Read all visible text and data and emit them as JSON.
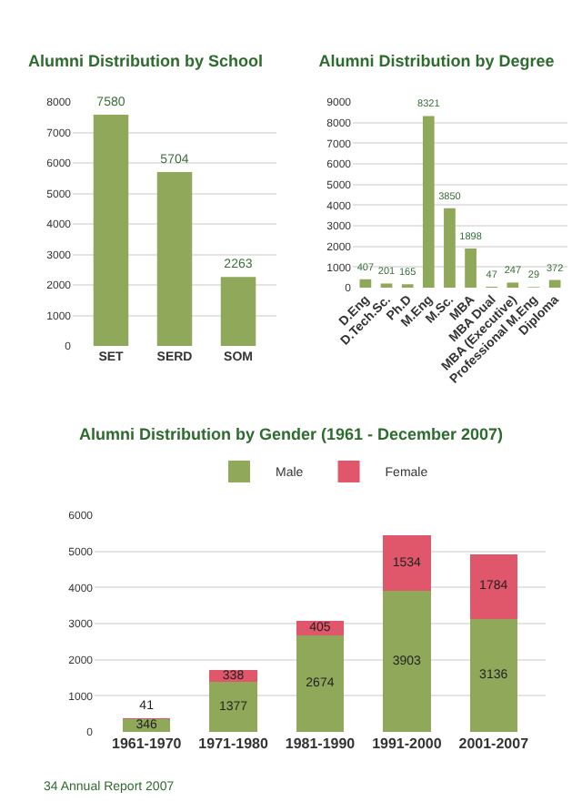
{
  "chart_data": [
    {
      "type": "bar",
      "title": "Alumni Distribution by School",
      "categories": [
        "SET",
        "SERD",
        "SOM"
      ],
      "values": [
        7580,
        5704,
        2263
      ],
      "color": "#8fa85a",
      "ylim": [
        0,
        8000
      ],
      "yticks": [
        0,
        1000,
        2000,
        3000,
        4000,
        5000,
        6000,
        7000,
        8000
      ],
      "grid": "y",
      "data_labels": true
    },
    {
      "type": "bar",
      "title": "Alumni Distribution by Degree",
      "categories": [
        "D.Eng",
        "D.Tech.Sc.",
        "Ph.D",
        "M.Eng",
        "M.Sc.",
        "MBA",
        "MBA Dual",
        "MBA (Executive)",
        "Professional M.Eng",
        "Diploma"
      ],
      "values": [
        407,
        201,
        165,
        8321,
        3850,
        1898,
        47,
        247,
        29,
        372
      ],
      "color": "#8fa85a",
      "ylim": [
        0,
        9000
      ],
      "yticks": [
        0,
        1000,
        2000,
        3000,
        4000,
        5000,
        6000,
        7000,
        8000,
        9000
      ],
      "grid": "y",
      "data_labels": true
    },
    {
      "type": "bar",
      "title": "Alumni Distribution by Gender (1961 - December 2007)",
      "categories": [
        "1961-1970",
        "1971-1980",
        "1981-1990",
        "1991-2000",
        "2001-2007"
      ],
      "stacked": true,
      "series": [
        {
          "name": "Male",
          "color": "#8fa85a",
          "values": [
            346,
            1377,
            2674,
            3903,
            3136
          ]
        },
        {
          "name": "Female",
          "color": "#e0566a",
          "values": [
            41,
            338,
            405,
            1534,
            1784
          ]
        }
      ],
      "ylim": [
        0,
        6000
      ],
      "yticks": [
        0,
        1000,
        2000,
        3000,
        4000,
        5000,
        6000
      ],
      "grid": "y",
      "legend": "top",
      "data_labels": true,
      "annotations": [
        "34 Annual Report 2007"
      ]
    }
  ]
}
